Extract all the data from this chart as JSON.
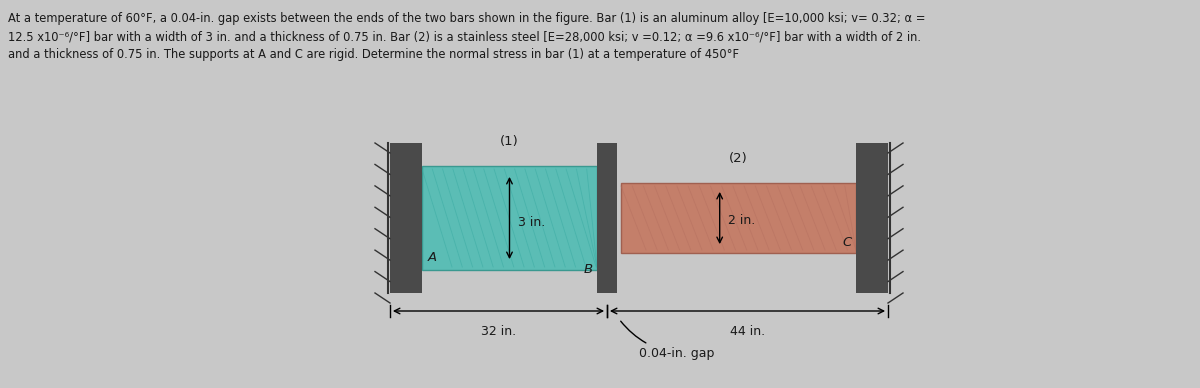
{
  "background_color": "#c8c8c8",
  "text_color": "#1a1a1a",
  "description_lines": [
    "At a temperature of 60°F, a 0.04-in. gap exists between the ends of the two bars shown in the figure. Bar (1) is an aluminum alloy [E=10,000 ksi; v= 0.32; α =",
    "12.5 x10⁻⁶/°F] bar with a width of 3 in. and a thickness of 0.75 in. Bar (2) is a stainless steel [E=28,000 ksi; v =0.12; α =9.6 x10⁻⁶/°F] bar with a width of 2 in.",
    "and a thickness of 0.75 in. The supports at A and C are rigid. Determine the normal stress in bar (1) at a temperature of 450°F"
  ],
  "bar1_color": "#5bbdb5",
  "bar2_color": "#c47f6a",
  "wall_color": "#4a4a4a",
  "wall_color_dark": "#2a2a2a",
  "bar1_label": "(1)",
  "bar2_label": "(2)",
  "bar1_width_label": "3 in.",
  "bar2_width_label": "2 in.",
  "bar1_length_label": "32 in.",
  "bar2_length_label": "44 in.",
  "gap_label": "0.04-in. gap",
  "label_A": "A",
  "label_B": "B",
  "label_C": "C",
  "fig_width": 12.0,
  "fig_height": 3.88,
  "dpi": 100,
  "text_fontsize": 8.3,
  "label_fontsize": 9.5,
  "dim_fontsize": 9.0
}
